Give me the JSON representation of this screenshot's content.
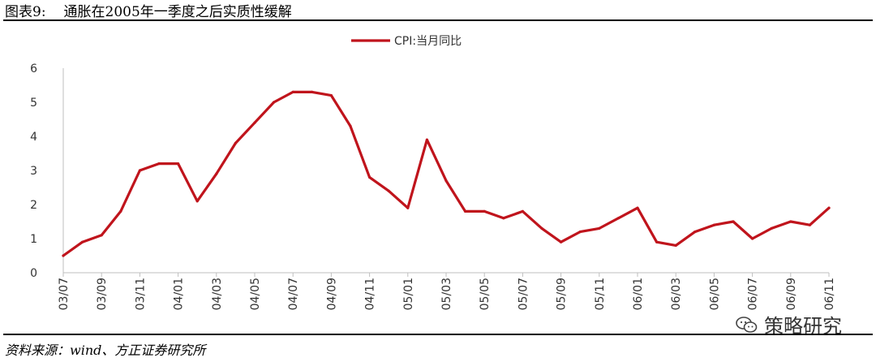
{
  "figure": {
    "label": "图表9:",
    "title": "通胀在2005年一季度之后实质性缓解"
  },
  "source": "资料来源：wind、方正证券研究所",
  "watermark": {
    "text": "策略研究",
    "icon": "wechat-icon"
  },
  "colors": {
    "line": "#c0141c",
    "axis": "#bfbfbf"
  },
  "chart_data": {
    "type": "line",
    "title": "",
    "xlabel": "",
    "ylabel": "",
    "ylim": [
      0,
      6
    ],
    "yticks": [
      "0",
      "1",
      "2",
      "3",
      "4",
      "5",
      "6"
    ],
    "x_tick_labels": [
      "03/07",
      "03/09",
      "03/11",
      "04/01",
      "04/03",
      "04/05",
      "04/07",
      "04/09",
      "04/11",
      "05/01",
      "05/03",
      "05/05",
      "05/07",
      "05/09",
      "05/11",
      "06/01",
      "06/03",
      "06/05",
      "06/07",
      "06/09",
      "06/11"
    ],
    "grid": false,
    "legend_position": "top-center",
    "series": [
      {
        "name": "CPI:当月同比",
        "x": [
          "03/07",
          "03/08",
          "03/09",
          "03/10",
          "03/11",
          "03/12",
          "04/01",
          "04/02",
          "04/03",
          "04/04",
          "04/05",
          "04/06",
          "04/07",
          "04/08",
          "04/09",
          "04/10",
          "04/11",
          "04/12",
          "05/01",
          "05/02",
          "05/03",
          "05/04",
          "05/05",
          "05/06",
          "05/07",
          "05/08",
          "05/09",
          "05/10",
          "05/11",
          "05/12",
          "06/01",
          "06/02",
          "06/03",
          "06/04",
          "06/05",
          "06/06",
          "06/07",
          "06/08",
          "06/09",
          "06/10",
          "06/11"
        ],
        "values": [
          0.5,
          0.9,
          1.1,
          1.8,
          3.0,
          3.2,
          3.2,
          2.1,
          2.9,
          3.8,
          4.4,
          5.0,
          5.3,
          5.3,
          5.2,
          4.3,
          2.8,
          2.4,
          1.9,
          3.9,
          2.7,
          1.8,
          1.8,
          1.6,
          1.8,
          1.3,
          0.9,
          1.2,
          1.3,
          1.6,
          1.9,
          0.9,
          0.8,
          1.2,
          1.4,
          1.5,
          1.0,
          1.3,
          1.5,
          1.4,
          1.9
        ]
      }
    ]
  }
}
